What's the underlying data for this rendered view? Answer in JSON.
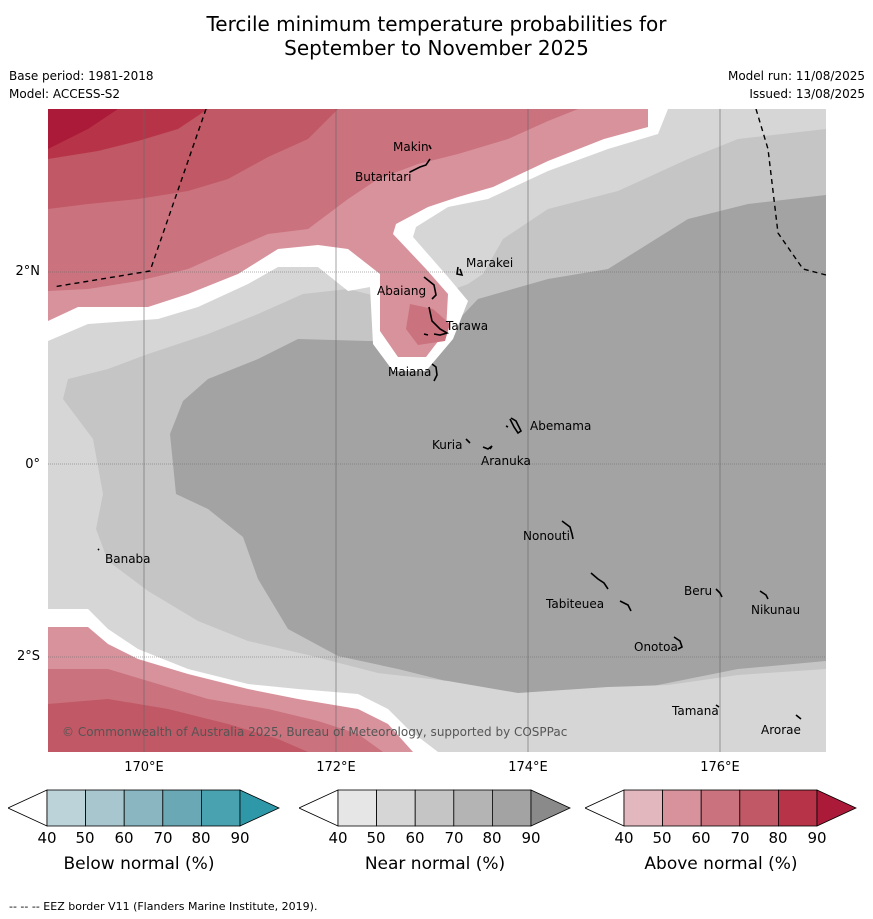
{
  "title_line1": "Tercile minimum temperature probabilities for",
  "title_line2": "September to November 2025",
  "base_period": "Base period: 1981-2018",
  "model": "Model: ACCESS-S2",
  "model_run": "Model run: 11/08/2025",
  "issued": "Issued: 13/08/2025",
  "copyright": "© Commonwealth of Australia 2025, Bureau of Meteorology, supported by COSPPac",
  "footer": "-- -- -- EEZ border V11 (Flanders Marine Institute, 2019).",
  "lat_labels": [
    "2°N",
    "0°",
    "2°S"
  ],
  "lon_labels": [
    "170°E",
    "172°E",
    "174°E",
    "176°E"
  ],
  "places": [
    "Makin",
    "Butaritari",
    "Marakei",
    "Abaiang",
    "Tarawa",
    "Maiana",
    "Abemama",
    "Kuria",
    "Aranuka",
    "Banaba",
    "Nonouti",
    "Beru",
    "Nikunau",
    "Tabiteuea",
    "Onotoa",
    "Tamana",
    "Arorae"
  ],
  "colorbars": [
    {
      "label": "Below normal (%)",
      "ticks": [
        "40",
        "50",
        "60",
        "70",
        "80",
        "90"
      ],
      "colors": [
        "#ffffff",
        "#bcd3da",
        "#a8c6ce",
        "#8ab6c1",
        "#6aa8b6",
        "#49a2b0",
        "#2f98a8"
      ]
    },
    {
      "label": "Near normal (%)",
      "ticks": [
        "40",
        "50",
        "60",
        "70",
        "80",
        "90"
      ],
      "colors": [
        "#ffffff",
        "#e6e6e6",
        "#d6d6d6",
        "#c5c5c5",
        "#b4b4b4",
        "#a3a3a3",
        "#8a8a8a"
      ]
    },
    {
      "label": "Above normal (%)",
      "ticks": [
        "40",
        "50",
        "60",
        "70",
        "80",
        "90"
      ],
      "colors": [
        "#ffffff",
        "#e2b7be",
        "#d7929c",
        "#ca727e",
        "#c15865",
        "#b73448",
        "#ab1a39"
      ]
    }
  ]
}
